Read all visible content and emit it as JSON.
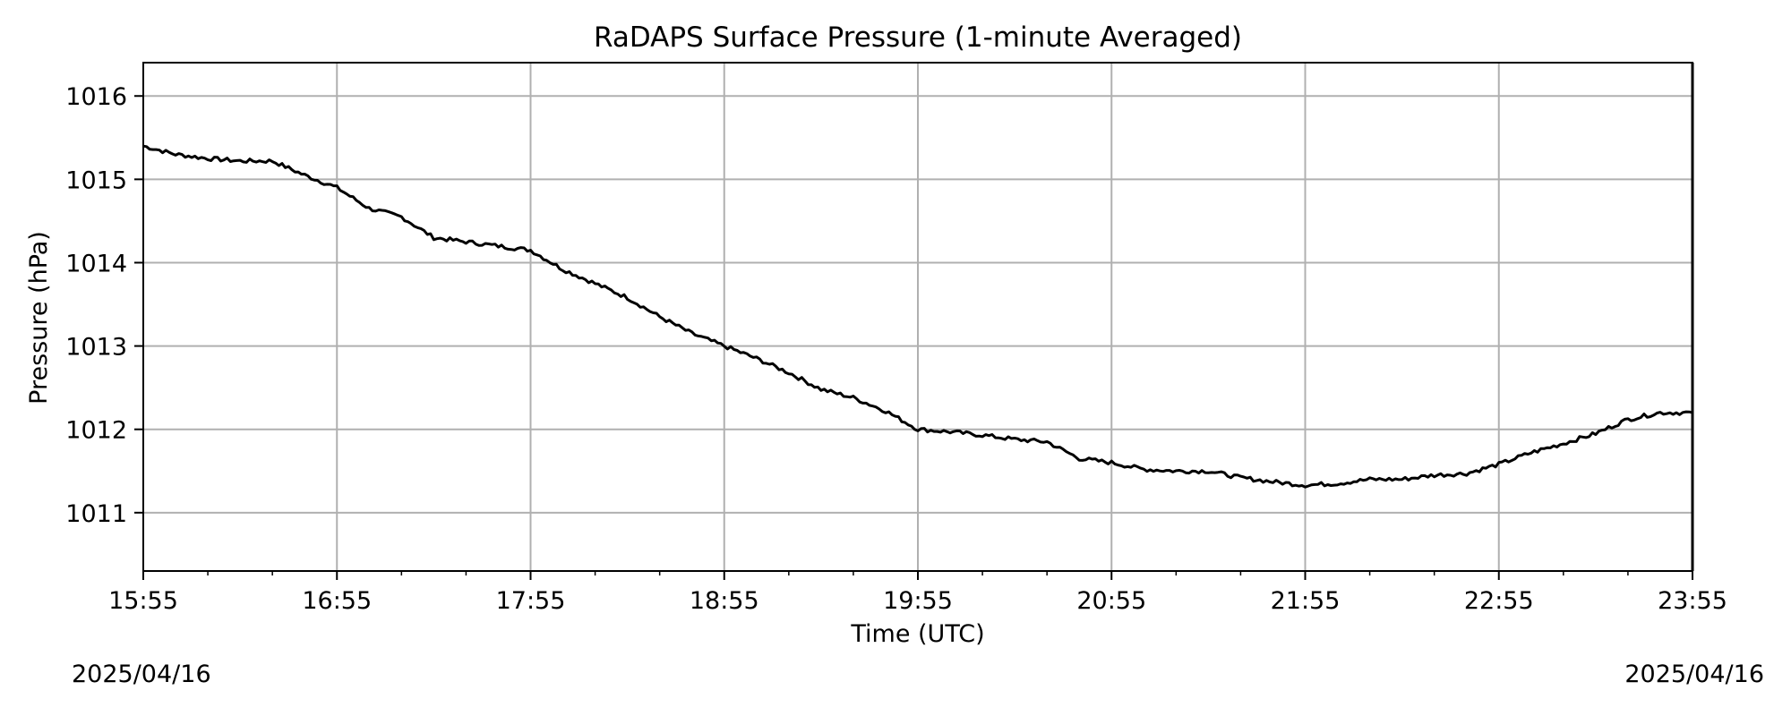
{
  "chart_data": {
    "type": "line",
    "title": "RaDAPS Surface Pressure (1-minute Averaged)",
    "xlabel": "Time (UTC)",
    "ylabel": "Pressure (hPa)",
    "x_ticks": [
      "15:55",
      "16:55",
      "17:55",
      "18:55",
      "19:55",
      "20:55",
      "21:55",
      "22:55",
      "23:55"
    ],
    "y_ticks": [
      1011,
      1012,
      1013,
      1014,
      1015,
      1016
    ],
    "xlim": [
      "15:55",
      "23:55"
    ],
    "ylim": [
      1010.3,
      1016.4
    ],
    "grid": true,
    "line_color": "#000000",
    "series": [
      {
        "x": [
          "15:55",
          "16:05",
          "16:15",
          "16:25",
          "16:35",
          "16:45",
          "16:55",
          "17:05",
          "17:15",
          "17:25",
          "17:35",
          "17:45",
          "17:55",
          "18:05",
          "18:15",
          "18:25",
          "18:35",
          "18:45",
          "18:55",
          "19:05",
          "19:15",
          "19:25",
          "19:35",
          "19:45",
          "19:55",
          "20:05",
          "20:15",
          "20:25",
          "20:35",
          "20:45",
          "20:55",
          "21:05",
          "21:15",
          "21:25",
          "21:35",
          "21:45",
          "21:55",
          "22:05",
          "22:15",
          "22:25",
          "22:35",
          "22:45",
          "22:55",
          "23:05",
          "23:15",
          "23:25",
          "23:35",
          "23:45",
          "23:55"
        ],
        "values": [
          1015.4,
          1015.3,
          1015.25,
          1015.22,
          1015.22,
          1015.05,
          1014.9,
          1014.65,
          1014.55,
          1014.3,
          1014.25,
          1014.2,
          1014.15,
          1013.92,
          1013.75,
          1013.58,
          1013.35,
          1013.15,
          1013.0,
          1012.85,
          1012.68,
          1012.48,
          1012.38,
          1012.22,
          1012.0,
          1011.97,
          1011.93,
          1011.88,
          1011.85,
          1011.65,
          1011.6,
          1011.52,
          1011.5,
          1011.5,
          1011.42,
          1011.37,
          1011.33,
          1011.35,
          1011.4,
          1011.4,
          1011.45,
          1011.47,
          1011.58,
          1011.72,
          1011.83,
          1011.95,
          1012.12,
          1012.2,
          1012.2
        ]
      }
    ]
  },
  "dates": {
    "left": "2025/04/16",
    "right": "2025/04/16"
  }
}
